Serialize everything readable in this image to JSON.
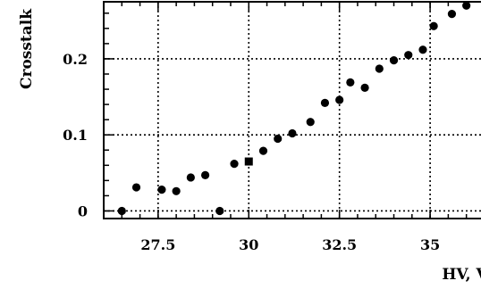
{
  "chart_data": {
    "type": "scatter",
    "title": "",
    "xlabel": "HV, V",
    "ylabel": "Crosstalk",
    "xlim": [
      26.0,
      36.6
    ],
    "ylim": [
      -0.01,
      0.275
    ],
    "xticks": [
      "27.5",
      "30",
      "32.5",
      "35"
    ],
    "yticks": [
      "0",
      "0.1",
      "0.2"
    ],
    "grid": true,
    "series": [
      {
        "marker": "circle",
        "points": [
          {
            "x": 26.5,
            "y": 0.0
          },
          {
            "x": 26.9,
            "y": 0.031
          },
          {
            "x": 27.6,
            "y": 0.028
          },
          {
            "x": 28.0,
            "y": 0.026
          },
          {
            "x": 28.4,
            "y": 0.044
          },
          {
            "x": 28.8,
            "y": 0.047
          },
          {
            "x": 29.2,
            "y": 0.0
          },
          {
            "x": 29.6,
            "y": 0.062
          },
          {
            "x": 30.4,
            "y": 0.079
          },
          {
            "x": 30.8,
            "y": 0.095
          },
          {
            "x": 31.2,
            "y": 0.102
          },
          {
            "x": 31.7,
            "y": 0.117
          },
          {
            "x": 32.1,
            "y": 0.142
          },
          {
            "x": 32.5,
            "y": 0.146
          },
          {
            "x": 32.8,
            "y": 0.169
          },
          {
            "x": 33.2,
            "y": 0.162
          },
          {
            "x": 33.6,
            "y": 0.187
          },
          {
            "x": 34.0,
            "y": 0.198
          },
          {
            "x": 34.4,
            "y": 0.205
          },
          {
            "x": 34.8,
            "y": 0.212
          },
          {
            "x": 35.1,
            "y": 0.243
          },
          {
            "x": 35.6,
            "y": 0.259
          },
          {
            "x": 36.0,
            "y": 0.27
          }
        ]
      },
      {
        "marker": "square",
        "points": [
          {
            "x": 30.0,
            "y": 0.065
          }
        ]
      }
    ]
  }
}
